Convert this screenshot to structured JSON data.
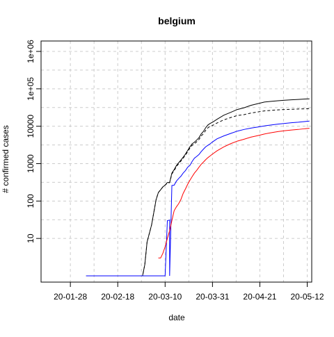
{
  "chart_data": {
    "type": "line",
    "title": "belgium",
    "xlabel": "date",
    "ylabel": "# confirmed cases",
    "y_scale": "log",
    "ylim": [
      1,
      1000000
    ],
    "xlim": [
      "2020-01-15",
      "2020-05-14"
    ],
    "x_ticks": [
      {
        "date": "2020-01-28",
        "label": "20-01-28"
      },
      {
        "date": "2020-02-18",
        "label": "20-02-18"
      },
      {
        "date": "2020-03-10",
        "label": "20-03-10"
      },
      {
        "date": "2020-03-31",
        "label": "20-03-31"
      },
      {
        "date": "2020-04-21",
        "label": "20-04-21"
      },
      {
        "date": "2020-05-12",
        "label": "20-05-12"
      }
    ],
    "y_ticks": [
      {
        "value": 10,
        "label": "10"
      },
      {
        "value": 100,
        "label": "100"
      },
      {
        "value": 1000,
        "label": "1000"
      },
      {
        "value": 10000,
        "label": "10000"
      },
      {
        "value": 100000,
        "label": "1e+05"
      },
      {
        "value": 1000000,
        "label": "1e+06"
      }
    ],
    "grid": true,
    "series": [
      {
        "color": "#000000",
        "dash": "solid",
        "points": [
          [
            "2020-02-04",
            1
          ],
          [
            "2020-02-20",
            1
          ],
          [
            "2020-02-29",
            1
          ],
          [
            "2020-03-01",
            2
          ],
          [
            "2020-03-02",
            8
          ],
          [
            "2020-03-04",
            23
          ],
          [
            "2020-03-05",
            50
          ],
          [
            "2020-03-06",
            109
          ],
          [
            "2020-03-07",
            169
          ],
          [
            "2020-03-08",
            200
          ],
          [
            "2020-03-09",
            239
          ],
          [
            "2020-03-10",
            267
          ],
          [
            "2020-03-11",
            314
          ],
          [
            "2020-03-12",
            314
          ],
          [
            "2020-03-13",
            559
          ],
          [
            "2020-03-14",
            689
          ],
          [
            "2020-03-15",
            886
          ],
          [
            "2020-03-16",
            1058
          ],
          [
            "2020-03-17",
            1243
          ],
          [
            "2020-03-18",
            1486
          ],
          [
            "2020-03-19",
            1795
          ],
          [
            "2020-03-20",
            2257
          ],
          [
            "2020-03-21",
            2815
          ],
          [
            "2020-03-22",
            3401
          ],
          [
            "2020-03-23",
            3743
          ],
          [
            "2020-03-24",
            4269
          ],
          [
            "2020-03-25",
            4937
          ],
          [
            "2020-03-26",
            6235
          ],
          [
            "2020-03-27",
            7284
          ],
          [
            "2020-03-28",
            9134
          ],
          [
            "2020-03-29",
            10836
          ],
          [
            "2020-03-30",
            11899
          ],
          [
            "2020-03-31",
            12775
          ],
          [
            "2020-04-02",
            15348
          ],
          [
            "2020-04-05",
            19691
          ],
          [
            "2020-04-08",
            23403
          ],
          [
            "2020-04-11",
            28018
          ],
          [
            "2020-04-14",
            31119
          ],
          [
            "2020-04-17",
            36138
          ],
          [
            "2020-04-20",
            39983
          ],
          [
            "2020-04-23",
            44293
          ],
          [
            "2020-04-26",
            46134
          ],
          [
            "2020-04-29",
            47859
          ],
          [
            "2020-05-02",
            49517
          ],
          [
            "2020-05-05",
            50781
          ],
          [
            "2020-05-08",
            52011
          ],
          [
            "2020-05-11",
            53449
          ],
          [
            "2020-05-13",
            54000
          ]
        ]
      },
      {
        "color": "#000000",
        "dash": "dashed",
        "points": [
          [
            "2020-02-04",
            1
          ],
          [
            "2020-02-20",
            1
          ],
          [
            "2020-02-29",
            1
          ],
          [
            "2020-03-01",
            2
          ],
          [
            "2020-03-02",
            8
          ],
          [
            "2020-03-04",
            23
          ],
          [
            "2020-03-05",
            50
          ],
          [
            "2020-03-06",
            109
          ],
          [
            "2020-03-07",
            169
          ],
          [
            "2020-03-08",
            200
          ],
          [
            "2020-03-09",
            239
          ],
          [
            "2020-03-10",
            267
          ],
          [
            "2020-03-11",
            300
          ],
          [
            "2020-03-12",
            310
          ],
          [
            "2020-03-13",
            530
          ],
          [
            "2020-03-14",
            650
          ],
          [
            "2020-03-15",
            830
          ],
          [
            "2020-03-16",
            1000
          ],
          [
            "2020-03-17",
            1170
          ],
          [
            "2020-03-18",
            1400
          ],
          [
            "2020-03-19",
            1680
          ],
          [
            "2020-03-20",
            2090
          ],
          [
            "2020-03-21",
            2600
          ],
          [
            "2020-03-22",
            3100
          ],
          [
            "2020-03-23",
            3400
          ],
          [
            "2020-03-24",
            3850
          ],
          [
            "2020-03-25",
            4400
          ],
          [
            "2020-03-26",
            5500
          ],
          [
            "2020-03-27",
            6300
          ],
          [
            "2020-03-28",
            7800
          ],
          [
            "2020-03-29",
            9100
          ],
          [
            "2020-03-30",
            9900
          ],
          [
            "2020-03-31",
            10500
          ],
          [
            "2020-04-02",
            12200
          ],
          [
            "2020-04-05",
            14800
          ],
          [
            "2020-04-08",
            17000
          ],
          [
            "2020-04-11",
            19300
          ],
          [
            "2020-04-14",
            20400
          ],
          [
            "2020-04-17",
            22500
          ],
          [
            "2020-04-20",
            24000
          ],
          [
            "2020-04-23",
            25700
          ],
          [
            "2020-04-26",
            26500
          ],
          [
            "2020-04-29",
            27400
          ],
          [
            "2020-05-02",
            28000
          ],
          [
            "2020-05-05",
            28400
          ],
          [
            "2020-05-08",
            28900
          ],
          [
            "2020-05-11",
            29300
          ],
          [
            "2020-05-13",
            29600
          ]
        ]
      },
      {
        "color": "#0000ff",
        "dash": "solid",
        "points": [
          [
            "2020-02-04",
            1
          ],
          [
            "2020-02-20",
            1
          ],
          [
            "2020-03-09",
            1
          ],
          [
            "2020-03-10",
            1
          ],
          [
            "2020-03-11",
            30
          ],
          [
            "2020-03-12",
            31
          ],
          [
            "2020-03-12",
            1
          ],
          [
            "2020-03-13",
            260
          ],
          [
            "2020-03-14",
            265
          ],
          [
            "2020-03-15",
            340
          ],
          [
            "2020-03-16",
            400
          ],
          [
            "2020-03-17",
            460
          ],
          [
            "2020-03-18",
            560
          ],
          [
            "2020-03-19",
            650
          ],
          [
            "2020-03-20",
            800
          ],
          [
            "2020-03-21",
            900
          ],
          [
            "2020-03-22",
            1150
          ],
          [
            "2020-03-23",
            1400
          ],
          [
            "2020-03-24",
            1560
          ],
          [
            "2020-03-25",
            1750
          ],
          [
            "2020-03-26",
            2100
          ],
          [
            "2020-03-27",
            2440
          ],
          [
            "2020-03-28",
            2820
          ],
          [
            "2020-03-29",
            3100
          ],
          [
            "2020-03-30",
            3400
          ],
          [
            "2020-03-31",
            3800
          ],
          [
            "2020-04-02",
            4600
          ],
          [
            "2020-04-05",
            5500
          ],
          [
            "2020-04-08",
            6400
          ],
          [
            "2020-04-11",
            7400
          ],
          [
            "2020-04-14",
            8200
          ],
          [
            "2020-04-17",
            8900
          ],
          [
            "2020-04-20",
            9500
          ],
          [
            "2020-04-23",
            10200
          ],
          [
            "2020-04-26",
            10800
          ],
          [
            "2020-04-29",
            11400
          ],
          [
            "2020-05-02",
            11900
          ],
          [
            "2020-05-05",
            12400
          ],
          [
            "2020-05-08",
            12800
          ],
          [
            "2020-05-11",
            13400
          ],
          [
            "2020-05-13",
            13700
          ]
        ]
      },
      {
        "color": "#ff0000",
        "dash": "solid",
        "points": [
          [
            "2020-03-07",
            3
          ],
          [
            "2020-03-08",
            3
          ],
          [
            "2020-03-09",
            4
          ],
          [
            "2020-03-10",
            6
          ],
          [
            "2020-03-11",
            10
          ],
          [
            "2020-03-12",
            16
          ],
          [
            "2020-03-13",
            30
          ],
          [
            "2020-03-14",
            55
          ],
          [
            "2020-03-15",
            70
          ],
          [
            "2020-03-16",
            85
          ],
          [
            "2020-03-17",
            110
          ],
          [
            "2020-03-18",
            160
          ],
          [
            "2020-03-19",
            210
          ],
          [
            "2020-03-20",
            280
          ],
          [
            "2020-03-21",
            360
          ],
          [
            "2020-03-22",
            450
          ],
          [
            "2020-03-23",
            560
          ],
          [
            "2020-03-24",
            660
          ],
          [
            "2020-03-25",
            800
          ],
          [
            "2020-03-26",
            960
          ],
          [
            "2020-03-27",
            1100
          ],
          [
            "2020-03-28",
            1280
          ],
          [
            "2020-03-29",
            1450
          ],
          [
            "2020-03-30",
            1620
          ],
          [
            "2020-03-31",
            1800
          ],
          [
            "2020-04-02",
            2200
          ],
          [
            "2020-04-05",
            2800
          ],
          [
            "2020-04-08",
            3400
          ],
          [
            "2020-04-11",
            4000
          ],
          [
            "2020-04-14",
            4500
          ],
          [
            "2020-04-17",
            5100
          ],
          [
            "2020-04-20",
            5600
          ],
          [
            "2020-04-23",
            6200
          ],
          [
            "2020-04-26",
            6700
          ],
          [
            "2020-04-29",
            7200
          ],
          [
            "2020-05-02",
            7600
          ],
          [
            "2020-05-05",
            7900
          ],
          [
            "2020-05-08",
            8200
          ],
          [
            "2020-05-11",
            8600
          ],
          [
            "2020-05-13",
            8800
          ]
        ]
      }
    ]
  }
}
